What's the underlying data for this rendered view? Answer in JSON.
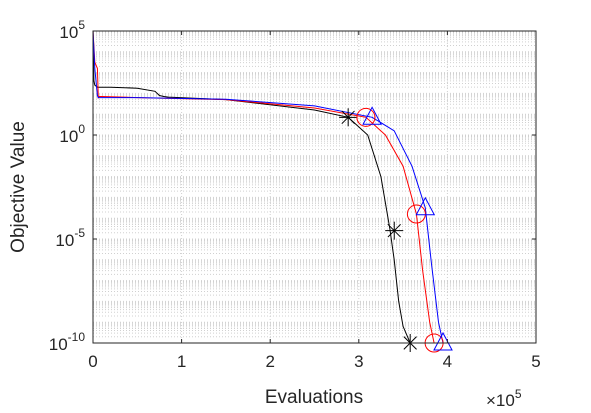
{
  "chart_data": {
    "type": "line",
    "xlabel": "Evaluations",
    "ylabel": "Objective Value",
    "x_multiplier": {
      "base": "×10",
      "exponent": "5"
    },
    "xlim": [
      0,
      5
    ],
    "ylim_log10": [
      -10,
      5
    ],
    "yscale": "log",
    "grid": "minor-dotted",
    "x_ticks": [
      "0",
      "1",
      "2",
      "3",
      "4",
      "5"
    ],
    "y_ticks": [
      {
        "base": "10",
        "exp": "5",
        "value_log10": 5
      },
      {
        "base": "10",
        "exp": "0",
        "value_log10": 0
      },
      {
        "base": "10",
        "exp": "-5",
        "value_log10": -5
      },
      {
        "base": "10",
        "exp": "-10",
        "value_log10": -10
      }
    ],
    "series": [
      {
        "color": "#000000",
        "marker": "asterisk",
        "points_x_e5": [
          0,
          0.01,
          0.02,
          0.05,
          0.2,
          0.5,
          0.7,
          0.75,
          0.8,
          0.85,
          1.5,
          2.5,
          2.88,
          3.1,
          3.25,
          3.35,
          3.4,
          3.45,
          3.5,
          3.58
        ],
        "points_log10_y": [
          5,
          2.6,
          2.4,
          2.3,
          2.3,
          2.25,
          2.1,
          1.9,
          1.85,
          1.82,
          1.7,
          1.2,
          0.85,
          0,
          -2,
          -4.5,
          -6,
          -8,
          -9.2,
          -10
        ],
        "markers_x_e5": [
          2.88,
          3.4,
          3.58
        ],
        "markers_log10_y": [
          0.85,
          -4.6,
          -10
        ]
      },
      {
        "color": "#ff0000",
        "marker": "circle",
        "points_x_e5": [
          0,
          0.02,
          0.05,
          0.06,
          0.07,
          0.08,
          0.1,
          0.5,
          1.5,
          2.5,
          3.08,
          3.3,
          3.5,
          3.65,
          3.72,
          3.8,
          3.85
        ],
        "points_log10_y": [
          5,
          3.5,
          3.2,
          1.8,
          1.85,
          1.85,
          1.85,
          1.8,
          1.7,
          1.3,
          0.85,
          0,
          -1.5,
          -3.8,
          -6.5,
          -9,
          -10
        ],
        "markers_x_e5": [
          3.08,
          3.65,
          3.85
        ],
        "markers_log10_y": [
          0.85,
          -3.8,
          -10
        ]
      },
      {
        "color": "#0000ff",
        "marker": "triangle",
        "points_x_e5": [
          0,
          0.02,
          0.05,
          0.06,
          0.1,
          0.5,
          1.5,
          2.5,
          3.15,
          3.4,
          3.6,
          3.75,
          3.82,
          3.9,
          3.95
        ],
        "points_log10_y": [
          5,
          3.2,
          1.9,
          1.8,
          1.8,
          1.8,
          1.72,
          1.4,
          0.85,
          0.2,
          -1.5,
          -3.5,
          -6.2,
          -9,
          -10
        ],
        "markers_x_e5": [
          3.15,
          3.75,
          3.95
        ],
        "markers_log10_y": [
          0.85,
          -3.5,
          -10
        ]
      }
    ]
  }
}
